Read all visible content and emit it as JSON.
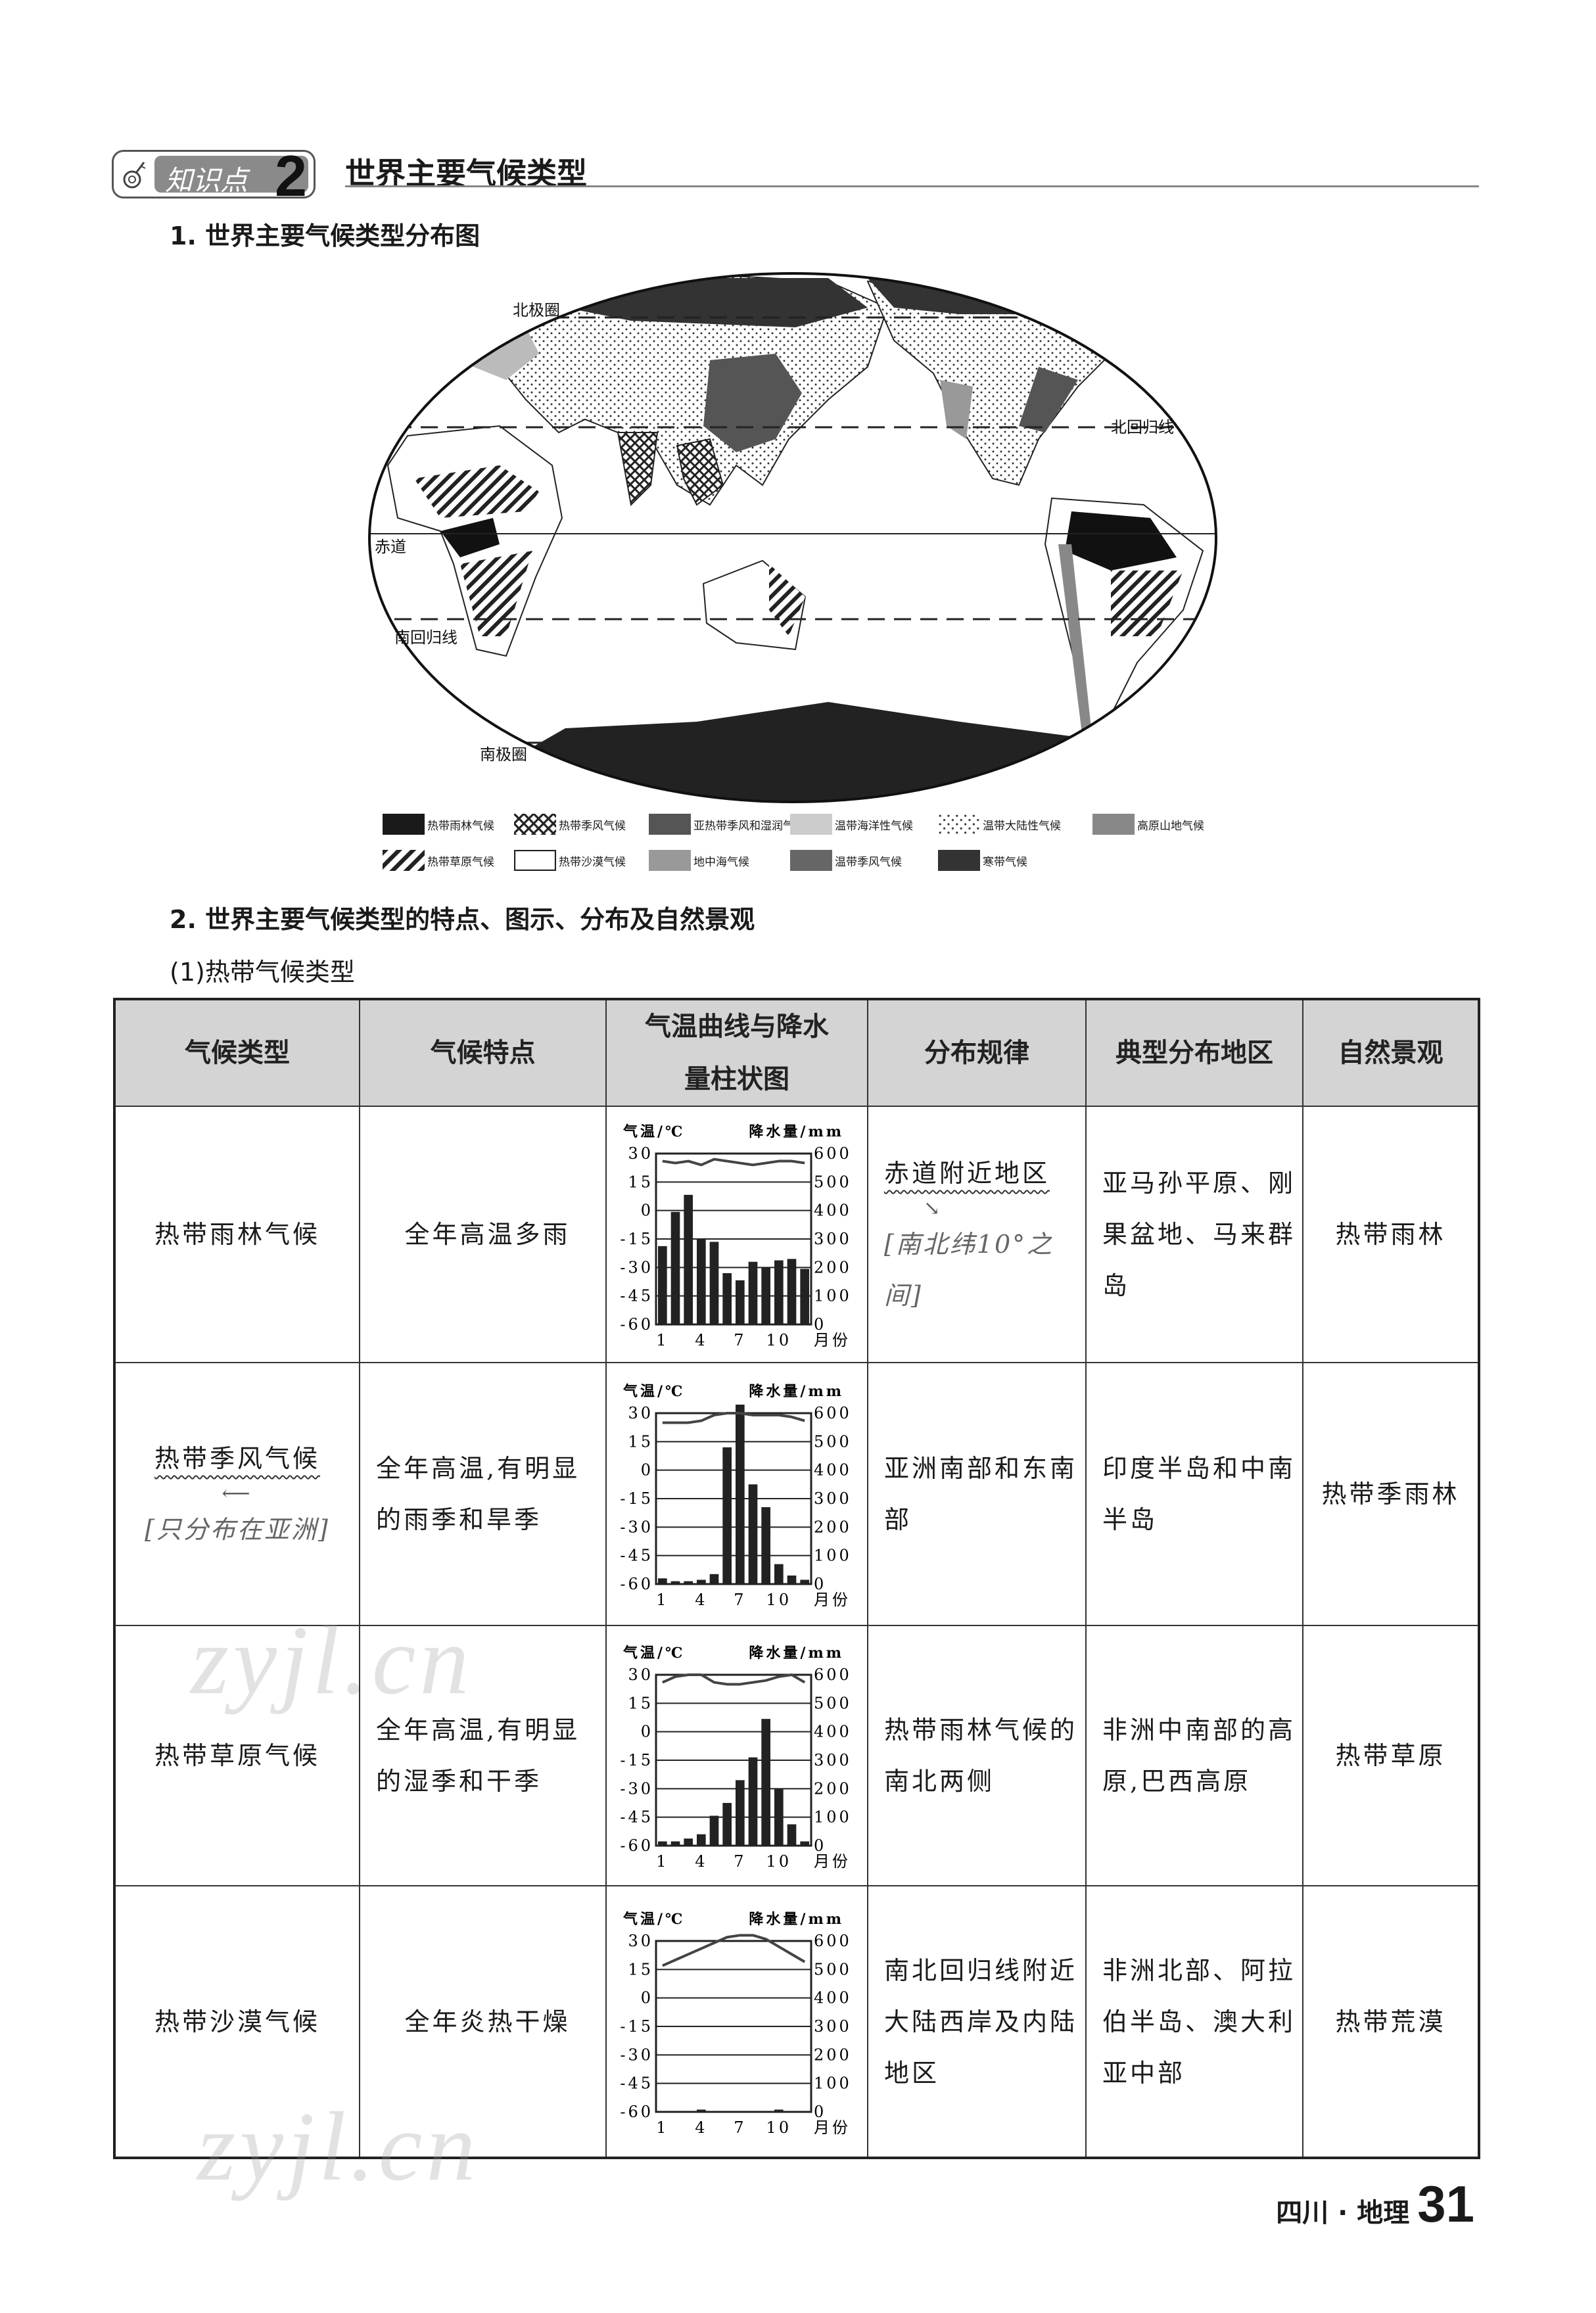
{
  "header": {
    "badge_text": "知识点",
    "badge_number": "2",
    "title": "世界主要气候类型",
    "key_icon": "key-icon"
  },
  "section1": {
    "title": "1. 世界主要气候类型分布图"
  },
  "map": {
    "labels": {
      "arctic": "北极圈",
      "cancer": "北回归线",
      "equator": "赤道",
      "capricorn": "南回归线",
      "antarctic": "南极圈"
    },
    "legend": [
      {
        "label": "热带雨林气候",
        "pattern": "solid-black"
      },
      {
        "label": "热带季风气候",
        "pattern": "crosshatch"
      },
      {
        "label": "亚热带季风和湿润气候",
        "pattern": "dark-gray"
      },
      {
        "label": "温带海洋性气候",
        "pattern": "light-gray"
      },
      {
        "label": "温带大陆性气候",
        "pattern": "dots"
      },
      {
        "label": "高原山地气候",
        "pattern": "mid-gray"
      },
      {
        "label": "热带草原气候",
        "pattern": "diagonal-hatch"
      },
      {
        "label": "热带沙漠气候",
        "pattern": "white"
      },
      {
        "label": "地中海气候",
        "pattern": "gray"
      },
      {
        "label": "温带季风气候",
        "pattern": "darker-gray"
      },
      {
        "label": "寒带气候",
        "pattern": "near-black"
      }
    ]
  },
  "section2": {
    "title": "2. 世界主要气候类型的特点、图示、分布及自然景观",
    "subtitle": "(1)热带气候类型"
  },
  "table": {
    "headers": [
      "气候类型",
      "气候特点",
      "气温曲线与降水量柱状图",
      "分布规律",
      "典型分布地区",
      "自然景观"
    ],
    "rows": [
      {
        "type": "热带雨林气候",
        "type_note": "",
        "features": "全年高温多雨",
        "distribution": "赤道附近地区",
        "distribution_note": "[南北纬10°之间]",
        "regions": "亚马孙平原、刚果盆地、马来群岛",
        "landscape": "热带雨林"
      },
      {
        "type": "热带季风气候",
        "type_note": "[只分布在亚洲]",
        "features": "全年高温,有明显的雨季和旱季",
        "distribution": "亚洲南部和东南部",
        "distribution_note": "",
        "regions": "印度半岛和中南半岛",
        "landscape": "热带季雨林"
      },
      {
        "type": "热带草原气候",
        "type_note": "",
        "features": "全年高温,有明显的湿季和干季",
        "distribution": "热带雨林气候的南北两侧",
        "distribution_note": "",
        "regions": "非洲中南部的高原,巴西高原",
        "landscape": "热带草原"
      },
      {
        "type": "热带沙漠气候",
        "type_note": "",
        "features": "全年炎热干燥",
        "distribution": "南北回归线附近大陆西岸及内陆地区",
        "distribution_note": "",
        "regions": "非洲北部、阿拉伯半岛、澳大利亚中部",
        "landscape": "热带荒漠"
      }
    ]
  },
  "chart_data": [
    {
      "type": "bar+line",
      "temp_label": "气温/℃",
      "precip_label": "降水量/mm",
      "xlabel": "月份",
      "x_ticks": [
        "1",
        "4",
        "7",
        "10"
      ],
      "temp_ticks": [
        "30",
        "15",
        "0",
        "-15",
        "-30",
        "-45",
        "-60"
      ],
      "precip_ticks": [
        "600",
        "500",
        "400",
        "300",
        "200",
        "100",
        "0"
      ],
      "temp_range": [
        -60,
        30
      ],
      "precip_range": [
        0,
        600
      ],
      "months": [
        1,
        2,
        3,
        4,
        5,
        6,
        7,
        8,
        9,
        10,
        11,
        12
      ],
      "precipitation": [
        275,
        395,
        455,
        300,
        290,
        180,
        155,
        220,
        200,
        225,
        230,
        195
      ],
      "temperature": [
        26,
        25,
        26,
        24,
        27,
        26,
        25,
        24,
        25,
        26,
        26,
        25
      ]
    },
    {
      "type": "bar+line",
      "temp_label": "气温/℃",
      "precip_label": "降水量/mm",
      "xlabel": "月份",
      "x_ticks": [
        "1",
        "4",
        "7",
        "10"
      ],
      "temp_ticks": [
        "30",
        "15",
        "0",
        "-15",
        "-30",
        "-45",
        "-60"
      ],
      "precip_ticks": [
        "600",
        "500",
        "400",
        "300",
        "200",
        "100",
        "0"
      ],
      "temp_range": [
        -60,
        30
      ],
      "precip_range": [
        0,
        600
      ],
      "months": [
        1,
        2,
        3,
        4,
        5,
        6,
        7,
        8,
        9,
        10,
        11,
        12
      ],
      "precipitation": [
        20,
        10,
        10,
        15,
        35,
        480,
        630,
        350,
        270,
        70,
        30,
        15
      ],
      "temperature": [
        25,
        25,
        25,
        26,
        29,
        30,
        30,
        29,
        29,
        29,
        28,
        26
      ]
    },
    {
      "type": "bar+line",
      "temp_label": "气温/℃",
      "precip_label": "降水量/mm",
      "xlabel": "月份",
      "x_ticks": [
        "1",
        "4",
        "7",
        "10"
      ],
      "temp_ticks": [
        "30",
        "15",
        "0",
        "-15",
        "-30",
        "-45",
        "-60"
      ],
      "precip_ticks": [
        "600",
        "500",
        "400",
        "300",
        "200",
        "100",
        "0"
      ],
      "temp_range": [
        -60,
        30
      ],
      "precip_range": [
        0,
        600
      ],
      "months": [
        1,
        2,
        3,
        4,
        5,
        6,
        7,
        8,
        9,
        10,
        11,
        12
      ],
      "precipitation": [
        15,
        15,
        25,
        40,
        105,
        150,
        230,
        310,
        445,
        200,
        75,
        15
      ],
      "temperature": [
        26,
        29,
        30,
        30,
        26,
        25,
        25,
        26,
        27,
        29,
        30,
        26
      ]
    },
    {
      "type": "bar+line",
      "temp_label": "气温/℃",
      "precip_label": "降水量/mm",
      "xlabel": "月份",
      "x_ticks": [
        "1",
        "4",
        "7",
        "10"
      ],
      "temp_ticks": [
        "30",
        "15",
        "0",
        "-15",
        "-30",
        "-45",
        "-60"
      ],
      "precip_ticks": [
        "600",
        "500",
        "400",
        "300",
        "200",
        "100",
        "0"
      ],
      "temp_range": [
        -60,
        30
      ],
      "precip_range": [
        0,
        600
      ],
      "months": [
        1,
        2,
        3,
        4,
        5,
        6,
        7,
        8,
        9,
        10,
        11,
        12
      ],
      "precipitation": [
        0,
        0,
        0,
        8,
        0,
        0,
        0,
        0,
        0,
        8,
        0,
        0
      ],
      "temperature": [
        17,
        20,
        23,
        26,
        29,
        32,
        33,
        33,
        31,
        27,
        23,
        19
      ]
    }
  ],
  "footer": {
    "region": "四川 · 地理",
    "page": "31"
  },
  "watermark": "zyjl.cn"
}
